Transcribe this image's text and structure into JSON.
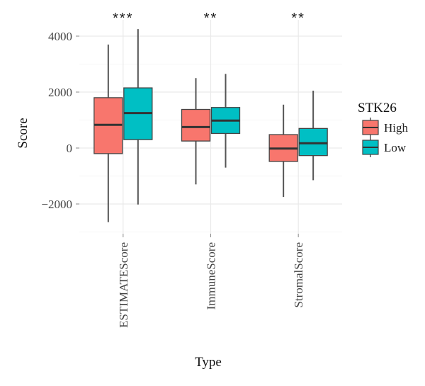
{
  "chart_data": {
    "type": "boxplot",
    "xlabel": "Type",
    "ylabel": "Score",
    "ylim": [
      -3000,
      4500
    ],
    "y_ticks": [
      -2000,
      0,
      2000,
      4000
    ],
    "y_tick_labels": [
      "−2000",
      "0",
      "2000",
      "4000"
    ],
    "categories": [
      "ESTIMATEScore",
      "ImmuneScore",
      "StromalScore"
    ],
    "significance": [
      "***",
      "**",
      "**"
    ],
    "grid": true,
    "legend": {
      "title": "STK26",
      "position": "right"
    },
    "series": [
      {
        "name": "High",
        "color": "#F8766D",
        "boxes": [
          {
            "min": -2650,
            "q1": -200,
            "median": 830,
            "q3": 1800,
            "max": 3700
          },
          {
            "min": -1300,
            "q1": 250,
            "median": 750,
            "q3": 1380,
            "max": 2500
          },
          {
            "min": -1750,
            "q1": -480,
            "median": -20,
            "q3": 480,
            "max": 1550
          }
        ]
      },
      {
        "name": "Low",
        "color": "#00BFC4",
        "boxes": [
          {
            "min": -2020,
            "q1": 300,
            "median": 1250,
            "q3": 2150,
            "max": 4250
          },
          {
            "min": -700,
            "q1": 520,
            "median": 980,
            "q3": 1450,
            "max": 2650
          },
          {
            "min": -1150,
            "q1": -270,
            "median": 170,
            "q3": 700,
            "max": 2050
          }
        ]
      }
    ]
  }
}
